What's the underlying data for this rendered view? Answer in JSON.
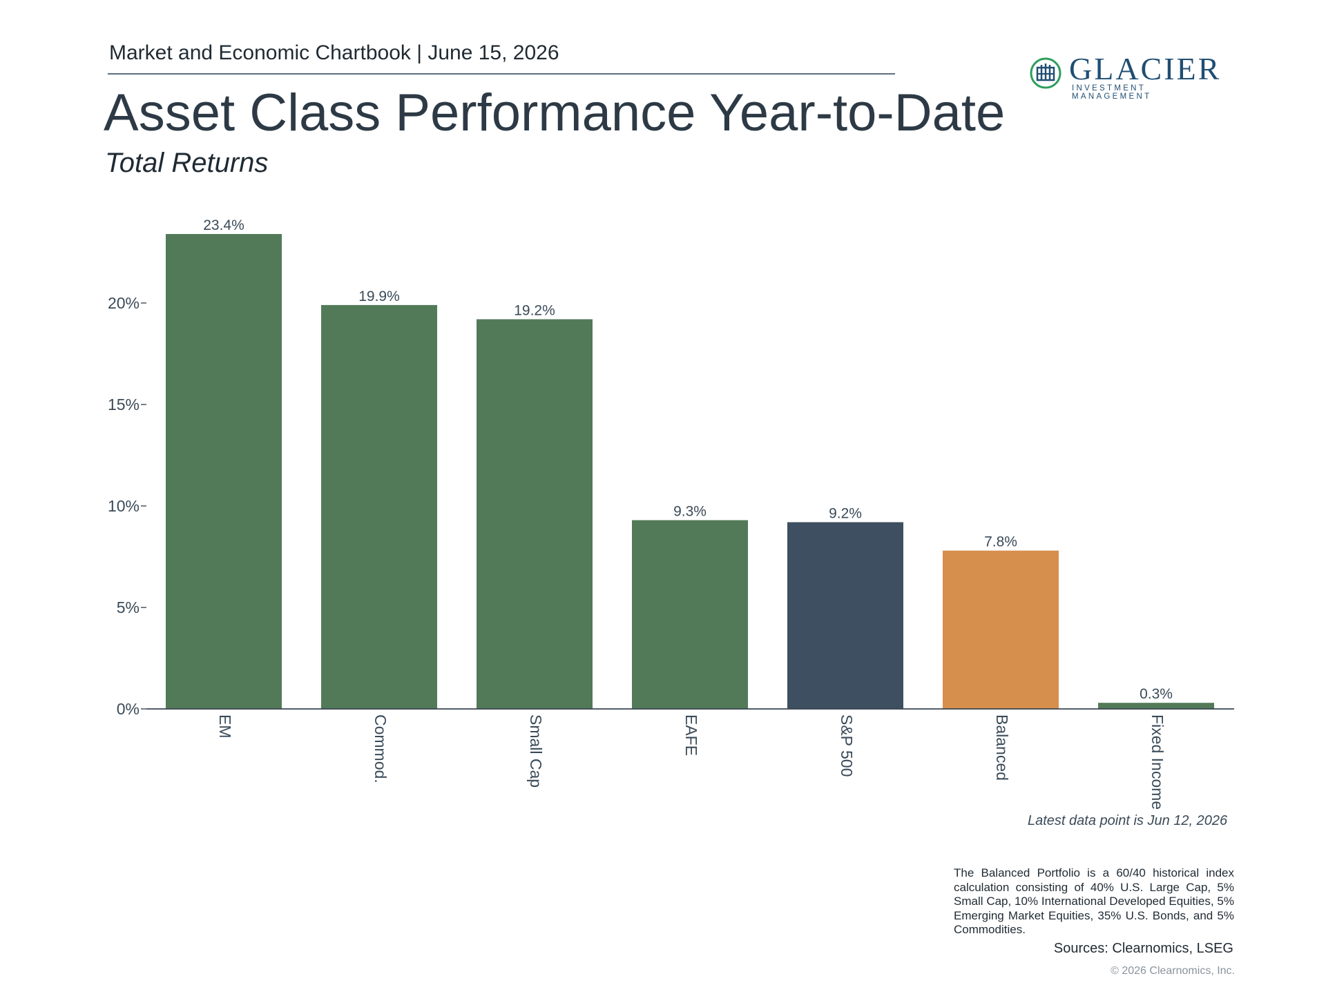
{
  "header": {
    "chartbook": "Market and Economic Chartbook | June 15, 2026",
    "title": "Asset Class Performance Year-to-Date",
    "subtitle": "Total Returns"
  },
  "logo": {
    "name": "GLACIER",
    "tagline": "INVESTMENT MANAGEMENT",
    "color": "#1f4e73",
    "accent": "#2e9e5e",
    "icon": "glacier-logo-icon"
  },
  "chart_data": {
    "type": "bar",
    "categories": [
      "EM",
      "Commod.",
      "Small Cap",
      "EAFE",
      "S&P 500",
      "Balanced",
      "Fixed Income"
    ],
    "values": [
      23.4,
      19.9,
      19.2,
      9.3,
      9.2,
      7.8,
      0.3
    ],
    "value_labels": [
      "23.4%",
      "19.9%",
      "19.2%",
      "9.3%",
      "9.2%",
      "7.8%",
      "0.3%"
    ],
    "colors": [
      "#527a58",
      "#527a58",
      "#527a58",
      "#527a58",
      "#3d4f60",
      "#d68f4c",
      "#527a58"
    ],
    "y_ticks": [
      0,
      5,
      10,
      15,
      20
    ],
    "y_tick_labels": [
      "0%",
      "5%",
      "10%",
      "15%",
      "20%"
    ],
    "ylim": [
      0,
      23.4
    ],
    "grid": false,
    "x_tick_orientation": "vertical"
  },
  "notes": {
    "latest": "Latest data point is Jun 12, 2026",
    "footnote": "The Balanced Portfolio is a 60/40 historical index calculation consisting of 40% U.S. Large Cap, 5% Small Cap, 10% International Developed Equities, 5% Emerging Market Equities, 35% U.S. Bonds, and 5% Commodities.",
    "sources": "Sources: Clearnomics, LSEG",
    "copyright": "© 2026 Clearnomics, Inc."
  }
}
